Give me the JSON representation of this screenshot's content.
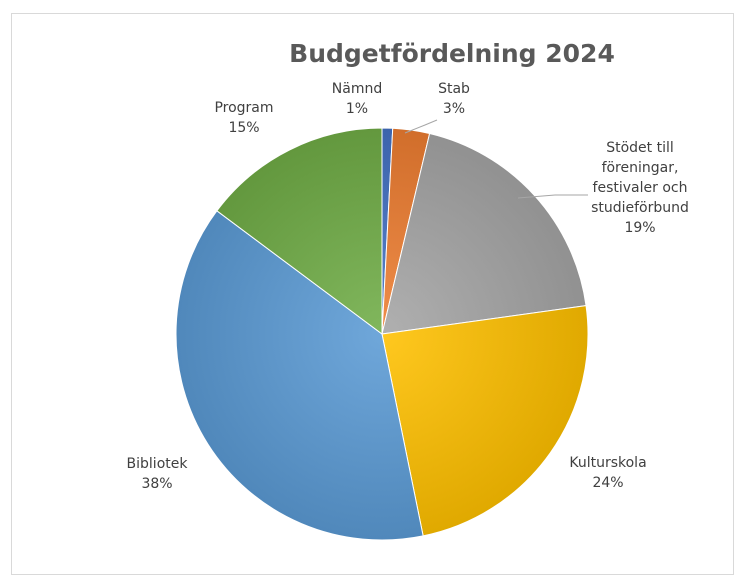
{
  "chart_data": {
    "type": "pie",
    "title": "Budgetfördelning 2024",
    "start_angle_deg": 0,
    "direction": "clockwise",
    "legend": "none",
    "slices": [
      {
        "label": "Nämnd",
        "value": 0.0083,
        "pct_text": "1%",
        "color": "#4472c4"
      },
      {
        "label": "Stab",
        "value": 0.0288,
        "pct_text": "3%",
        "color": "#ed7d31"
      },
      {
        "label": "Stödet till föreningar, festivaler och studieförbund",
        "value": 0.1909,
        "pct_text": "19%",
        "color": "#a5a5a5"
      },
      {
        "label": "Kulturskola",
        "value": 0.24,
        "pct_text": "24%",
        "color": "#ffc000"
      },
      {
        "label": "Bibliotek",
        "value": 0.384,
        "pct_text": "38%",
        "color": "#5b9bd5"
      },
      {
        "label": "Program",
        "value": 0.148,
        "pct_text": "15%",
        "color": "#70ad47"
      }
    ]
  }
}
